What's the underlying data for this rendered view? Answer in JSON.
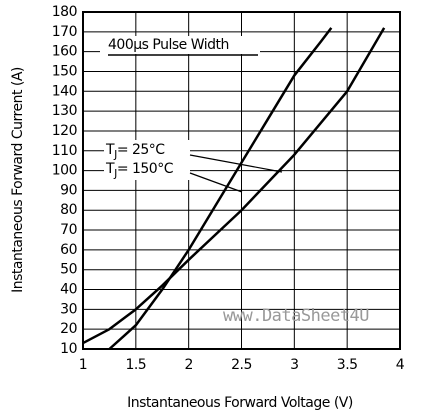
{
  "chart_data": {
    "type": "line",
    "x_label": "Instantaneous Forward Voltage (V)",
    "y_label": "Instantaneous Forward Current (A)",
    "series": [
      {
        "color": "#000000",
        "x": [
          1.25,
          1.5,
          1.75,
          2,
          2.25,
          2.5,
          2.75,
          3,
          3.25,
          3.35
        ],
        "values": [
          10,
          22,
          40,
          60,
          82,
          104,
          126,
          148,
          165,
          172
        ]
      },
      {
        "color": "#000000",
        "x": [
          1,
          1.25,
          1.5,
          1.75,
          2,
          2.5,
          3,
          3.5,
          3.85
        ],
        "values": [
          13,
          20,
          30,
          42,
          55,
          80,
          108,
          140,
          172
        ]
      }
    ],
    "annotations": {
      "pulse": "400µs Pulse Width",
      "tj25": [
        "T",
        "J",
        "= 25°C"
      ],
      "tj150": [
        "T",
        "J",
        "= 150°C"
      ],
      "watermark": "www.DataSheet4U"
    },
    "xlim": [
      1,
      4
    ],
    "xticks": [
      1,
      1.5,
      2,
      2.5,
      3,
      3.5,
      4
    ],
    "ylim": [
      10,
      180
    ],
    "yticks": [
      10,
      20,
      30,
      40,
      50,
      60,
      70,
      80,
      90,
      100,
      110,
      120,
      130,
      140,
      150,
      160,
      170,
      180
    ],
    "grid": true
  }
}
